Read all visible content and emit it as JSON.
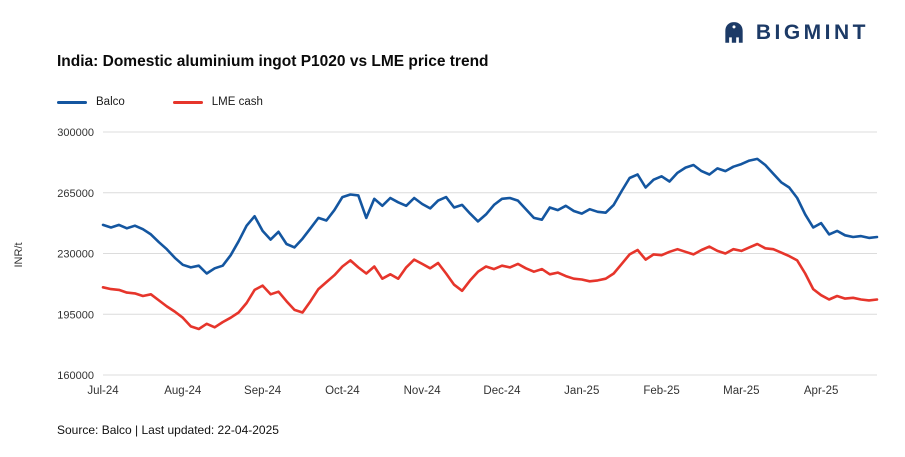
{
  "logo": {
    "text": "BIGMINT",
    "color": "#1c3a66"
  },
  "title": "India: Domestic aluminium ingot P1020 vs LME price trend",
  "source_note": "Source: Balco | Last updated: 22-04-2025",
  "chart_data": {
    "type": "line",
    "title": "India: Domestic aluminium ingot P1020 vs LME price trend",
    "xlabel": "",
    "ylabel": "INR/t",
    "ylim": [
      160000,
      300000
    ],
    "y_ticks": [
      160000,
      195000,
      230000,
      265000,
      300000
    ],
    "grid": "horizontal",
    "legend_position": "top-left",
    "x_ticks": [
      {
        "label": "Jul-24",
        "index": 0
      },
      {
        "label": "Aug-24",
        "index": 10
      },
      {
        "label": "Sep-24",
        "index": 20
      },
      {
        "label": "Oct-24",
        "index": 30
      },
      {
        "label": "Nov-24",
        "index": 40
      },
      {
        "label": "Dec-24",
        "index": 50
      },
      {
        "label": "Jan-25",
        "index": 60
      },
      {
        "label": "Feb-25",
        "index": 70
      },
      {
        "label": "Mar-25",
        "index": 80
      },
      {
        "label": "Apr-25",
        "index": 90
      }
    ],
    "series": [
      {
        "name": "Balco",
        "color": "#1456a0",
        "values": [
          246500,
          245000,
          246500,
          244500,
          246000,
          244000,
          241000,
          236500,
          232500,
          227500,
          223500,
          222000,
          223000,
          218500,
          221500,
          223000,
          229000,
          237000,
          246000,
          251500,
          243000,
          238000,
          242500,
          235500,
          233500,
          238500,
          244500,
          250500,
          249000,
          255000,
          262500,
          264000,
          263500,
          250500,
          261500,
          257500,
          262000,
          259500,
          257500,
          262000,
          258500,
          256000,
          260500,
          262500,
          256500,
          258000,
          253000,
          248500,
          252500,
          258000,
          261500,
          262000,
          260500,
          255500,
          250500,
          249500,
          256500,
          255000,
          257500,
          254500,
          253000,
          255500,
          254000,
          253500,
          258000,
          266000,
          273500,
          275500,
          268000,
          272500,
          274500,
          271500,
          276500,
          279500,
          281000,
          277500,
          275500,
          279000,
          277500,
          280000,
          281500,
          283500,
          284500,
          281000,
          276000,
          271000,
          268000,
          262000,
          252500,
          245000,
          247500,
          241000,
          243000,
          240500,
          239500,
          240000,
          239000,
          239500
        ]
      },
      {
        "name": "LME cash",
        "color": "#e6352b",
        "values": [
          210500,
          209500,
          209000,
          207500,
          207000,
          205500,
          206500,
          203000,
          199500,
          196500,
          193000,
          188000,
          186500,
          189500,
          187500,
          190500,
          193000,
          196000,
          201500,
          209000,
          211500,
          206500,
          208000,
          202500,
          197500,
          196000,
          202500,
          209500,
          213500,
          217500,
          222500,
          226000,
          222000,
          218500,
          222500,
          215500,
          218000,
          215500,
          222000,
          226500,
          224000,
          221500,
          224500,
          218500,
          212000,
          208500,
          214500,
          219500,
          222500,
          221000,
          223000,
          222000,
          224000,
          221500,
          219500,
          221000,
          218000,
          219000,
          217000,
          215500,
          215000,
          214000,
          214500,
          215500,
          218500,
          224000,
          229500,
          232000,
          226500,
          229500,
          229000,
          231000,
          232500,
          231000,
          229500,
          232000,
          234000,
          231500,
          230000,
          232500,
          231500,
          233500,
          235500,
          233000,
          232500,
          230500,
          228500,
          226000,
          218500,
          209500,
          206000,
          203500,
          205500,
          204000,
          204500,
          203500,
          203000,
          203500
        ]
      }
    ]
  }
}
